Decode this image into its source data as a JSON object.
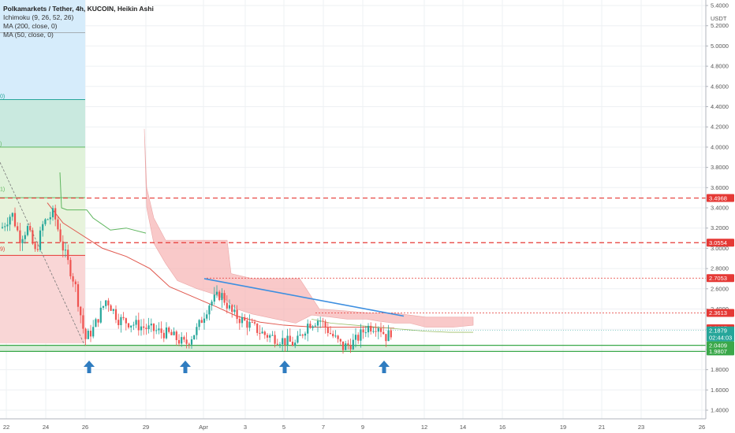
{
  "header": {
    "title": "Polkamarkets / Tether, 4h, KUCOIN, Heikin Ashi",
    "indicators": [
      "Ichimoku (9, 26, 52, 26)",
      "MA (200, close, 0)",
      "MA (50, close, 0)"
    ]
  },
  "colors": {
    "up": "#26a69a",
    "down": "#ef5350",
    "cloud": "#f7b7b7",
    "ma200": "#e0584e",
    "ma50": "#5fb65f",
    "support": "#3aa84a",
    "resistance": "#e53935",
    "trend": "#3d8fe0",
    "arrow": "#2f7cc0"
  },
  "chart_data": {
    "type": "candlestick",
    "ylim": [
      1.4,
      5.4
    ],
    "yticks": [
      1.4,
      1.6,
      1.8,
      2.0,
      2.2,
      2.4,
      2.6,
      2.8,
      3.0,
      3.2,
      3.4,
      3.6,
      3.8,
      4.0,
      4.2,
      4.4,
      4.6,
      4.8,
      5.0,
      5.2,
      5.4
    ],
    "y_unit": "USDT",
    "x_ticks": [
      "22",
      "24",
      "26",
      "29",
      "Apr",
      "3",
      "5",
      "7",
      "9",
      "12",
      "14",
      "16",
      "19",
      "21",
      "23",
      "26"
    ],
    "price_tags": [
      {
        "value": 3.4968,
        "label": "3.4968",
        "kind": "resistance"
      },
      {
        "value": 3.0554,
        "label": "3.0554",
        "kind": "resistance"
      },
      {
        "value": 2.7053,
        "label": "2.7053",
        "kind": "resistance-dotted"
      },
      {
        "value": 2.3613,
        "label": "2.3613",
        "kind": "resistance-dotted"
      },
      {
        "value": 2.2097,
        "label": "2.2097",
        "kind": "cloud"
      },
      {
        "value": 2.1879,
        "label": "2.1879",
        "kind": "last",
        "countdown": "02:44:03"
      },
      {
        "value": 2.0409,
        "label": "2.0409",
        "kind": "support"
      },
      {
        "value": 1.9807,
        "label": "1.9807",
        "kind": "support"
      }
    ],
    "support_zone": [
      1.9807,
      2.0409
    ],
    "trendline": [
      [
        2.7,
        2.33
      ]
    ],
    "fib_labels": [
      "0)",
      ")",
      "1)",
      "9)"
    ]
  }
}
